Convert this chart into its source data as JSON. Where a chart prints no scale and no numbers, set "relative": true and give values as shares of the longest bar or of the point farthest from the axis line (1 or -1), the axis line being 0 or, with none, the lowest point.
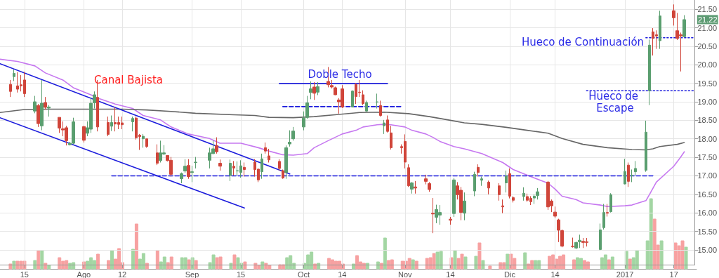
{
  "chart_data": [
    {
      "type": "candlestick",
      "x": [
        "2016-07-11",
        "2016-07-12",
        "2016-07-13",
        "2016-07-14",
        "2016-07-15",
        "2016-07-18",
        "2016-07-19",
        "2016-07-20",
        "2016-07-21",
        "2016-07-22",
        "2016-07-25",
        "2016-07-26",
        "2016-07-27",
        "2016-07-28",
        "2016-07-29",
        "2016-08-01",
        "2016-08-02",
        "2016-08-03",
        "2016-08-04",
        "2016-08-05",
        "2016-08-08",
        "2016-08-09",
        "2016-08-10",
        "2016-08-11",
        "2016-08-12",
        "2016-08-15",
        "2016-08-16",
        "2016-08-17",
        "2016-08-18",
        "2016-08-19",
        "2016-08-22",
        "2016-08-23",
        "2016-08-24",
        "2016-08-25",
        "2016-08-26",
        "2016-08-29",
        "2016-08-30",
        "2016-08-31",
        "2016-09-01",
        "2016-09-02",
        "2016-09-06",
        "2016-09-07",
        "2016-09-08",
        "2016-09-09",
        "2016-09-12",
        "2016-09-13",
        "2016-09-14",
        "2016-09-15",
        "2016-09-16",
        "2016-09-19",
        "2016-09-20",
        "2016-09-21",
        "2016-09-22",
        "2016-09-23",
        "2016-09-26",
        "2016-09-27",
        "2016-09-28",
        "2016-09-29",
        "2016-09-30",
        "2016-10-03",
        "2016-10-04",
        "2016-10-05",
        "2016-10-06",
        "2016-10-07",
        "2016-10-10",
        "2016-10-11",
        "2016-10-12",
        "2016-10-13",
        "2016-10-14",
        "2016-10-17",
        "2016-10-18",
        "2016-10-19",
        "2016-10-20",
        "2016-10-21",
        "2016-10-24",
        "2016-10-25",
        "2016-10-26",
        "2016-10-27",
        "2016-10-28",
        "2016-10-31",
        "2016-11-01",
        "2016-11-02",
        "2016-11-03",
        "2016-11-04",
        "2016-11-07",
        "2016-11-08",
        "2016-11-09",
        "2016-11-10",
        "2016-11-11",
        "2016-11-14",
        "2016-11-15",
        "2016-11-16",
        "2016-11-17",
        "2016-11-18",
        "2016-11-21",
        "2016-11-22",
        "2016-11-23",
        "2016-11-25",
        "2016-11-28",
        "2016-11-29",
        "2016-11-30",
        "2016-12-01",
        "2016-12-02",
        "2016-12-05",
        "2016-12-06",
        "2016-12-07",
        "2016-12-08",
        "2016-12-09",
        "2016-12-12",
        "2016-12-13",
        "2016-12-14",
        "2016-12-15",
        "2016-12-16",
        "2016-12-19",
        "2016-12-20",
        "2016-12-21",
        "2016-12-22",
        "2016-12-23",
        "2016-12-27",
        "2016-12-28",
        "2016-12-29",
        "2016-12-30",
        "2017-01-03",
        "2017-01-04",
        "2017-01-05",
        "2017-01-06",
        "2017-01-09",
        "2017-01-10",
        "2017-01-11",
        "2017-01-12",
        "2017-01-13",
        "2017-01-17",
        "2017-01-18",
        "2017-01-19",
        "2017-01-20"
      ],
      "ohlc": [
        [
          19.47,
          19.59,
          19.13,
          19.28
        ],
        [
          19.68,
          19.87,
          19.56,
          19.77
        ],
        [
          19.43,
          19.8,
          19.25,
          19.34
        ],
        [
          19.46,
          19.72,
          19.28,
          19.43
        ],
        [
          19.59,
          19.81,
          19.13,
          19.22
        ],
        [
          18.75,
          19.16,
          18.69,
          19.0
        ],
        [
          18.9,
          18.94,
          18.32,
          18.41
        ],
        [
          18.35,
          19.59,
          18.23,
          18.96
        ],
        [
          18.98,
          19.13,
          18.79,
          18.85
        ],
        [
          18.83,
          18.91,
          18.6,
          18.86
        ],
        [
          18.58,
          18.58,
          18.16,
          18.29
        ],
        [
          18.27,
          18.47,
          18.07,
          18.24
        ],
        [
          18.3,
          18.35,
          17.82,
          17.95
        ],
        [
          17.84,
          17.92,
          17.82,
          17.88
        ],
        [
          17.88,
          18.57,
          17.85,
          18.46
        ],
        [
          18.33,
          18.35,
          17.9,
          17.96
        ],
        [
          18.15,
          18.47,
          18.07,
          18.3
        ],
        [
          18.26,
          19.1,
          18.16,
          18.96
        ],
        [
          18.97,
          19.28,
          18.82,
          19.19
        ],
        [
          19.12,
          19.59,
          18.2,
          18.32
        ],
        [
          18.44,
          18.6,
          18.07,
          18.12
        ],
        [
          18.34,
          18.63,
          18.21,
          18.44
        ],
        [
          18.44,
          18.85,
          18.2,
          18.4
        ],
        [
          18.44,
          18.6,
          18.26,
          18.39
        ],
        [
          18.43,
          18.6,
          18.26,
          18.38
        ],
        [
          18.46,
          18.6,
          18.2,
          18.55
        ],
        [
          18.56,
          18.6,
          17.98,
          18.03
        ],
        [
          18.1,
          18.13,
          17.7,
          18.06
        ],
        [
          18.0,
          18.13,
          17.76,
          18.07
        ],
        [
          18.0,
          18.0,
          17.76,
          17.79
        ],
        [
          17.62,
          17.85,
          17.29,
          17.34
        ],
        [
          17.41,
          17.95,
          17.36,
          17.62
        ],
        [
          17.59,
          17.83,
          17.56,
          17.62
        ],
        [
          17.55,
          17.56,
          17.39,
          17.41
        ],
        [
          17.42,
          17.51,
          16.98,
          17.04
        ],
        [
          16.92,
          17.09,
          16.8,
          17.06
        ],
        [
          17.13,
          17.45,
          17.08,
          17.26
        ],
        [
          17.28,
          17.45,
          16.92,
          16.98
        ],
        [
          17.09,
          17.27,
          16.83,
          17.11
        ],
        [
          17.36,
          17.51,
          17.2,
          17.37
        ],
        [
          17.42,
          17.76,
          17.2,
          17.62
        ],
        [
          17.6,
          17.95,
          17.59,
          17.73
        ],
        [
          17.82,
          18.04,
          17.6,
          17.65
        ],
        [
          17.34,
          17.44,
          17.14,
          17.26
        ],
        [
          17.01,
          17.44,
          16.86,
          17.34
        ],
        [
          17.26,
          17.4,
          17.01,
          17.21
        ],
        [
          17.13,
          17.39,
          17.01,
          17.14
        ],
        [
          17.09,
          17.42,
          16.95,
          17.27
        ],
        [
          17.23,
          17.36,
          16.98,
          17.17
        ],
        [
          17.37,
          17.45,
          16.98,
          17.17
        ],
        [
          17.18,
          17.2,
          16.83,
          16.89
        ],
        [
          17.11,
          17.6,
          16.92,
          17.46
        ],
        [
          17.76,
          17.9,
          17.6,
          17.67
        ],
        [
          17.54,
          17.73,
          17.36,
          17.43
        ],
        [
          17.39,
          17.45,
          17.14,
          17.2
        ],
        [
          17.14,
          17.17,
          16.92,
          16.94
        ],
        [
          17.09,
          17.82,
          16.92,
          17.76
        ],
        [
          17.86,
          18.23,
          17.79,
          17.91
        ],
        [
          18.0,
          18.32,
          17.95,
          18.21
        ],
        [
          18.32,
          18.74,
          18.23,
          18.56
        ],
        [
          18.58,
          19.16,
          18.54,
          18.97
        ],
        [
          19.25,
          19.55,
          19.07,
          19.35
        ],
        [
          19.4,
          19.53,
          19.05,
          19.23
        ],
        [
          19.26,
          19.53,
          19.18,
          19.41
        ],
        [
          19.55,
          19.94,
          19.39,
          19.46
        ],
        [
          19.44,
          19.59,
          19.36,
          19.4
        ],
        [
          19.38,
          19.41,
          19.18,
          19.19
        ],
        [
          19.05,
          19.1,
          18.68,
          19.0
        ],
        [
          19.35,
          19.45,
          18.83,
          18.86
        ],
        [
          18.86,
          19.31,
          18.85,
          19.29
        ],
        [
          19.47,
          19.5,
          18.94,
          19.14
        ],
        [
          19.26,
          19.59,
          19.13,
          19.25
        ],
        [
          19.19,
          19.31,
          18.91,
          18.95
        ],
        [
          18.75,
          19.03,
          18.74,
          18.98
        ],
        [
          18.99,
          19.22,
          18.82,
          19.0
        ],
        [
          18.9,
          19.03,
          18.6,
          18.63
        ],
        [
          18.35,
          18.51,
          18.13,
          18.43
        ],
        [
          18.51,
          18.63,
          18.17,
          18.2
        ],
        [
          18.16,
          18.35,
          17.71,
          17.76
        ],
        [
          17.79,
          17.85,
          17.6,
          17.76
        ],
        [
          17.93,
          18.12,
          17.2,
          17.37
        ],
        [
          17.22,
          17.31,
          16.7,
          16.73
        ],
        [
          16.64,
          16.83,
          16.52,
          16.81
        ],
        [
          16.7,
          16.86,
          16.52,
          16.67
        ],
        [
          16.92,
          17.03,
          16.77,
          16.85
        ],
        [
          16.79,
          16.83,
          16.57,
          16.63
        ],
        [
          15.99,
          16.4,
          15.45,
          15.97
        ],
        [
          15.88,
          16.22,
          15.72,
          16.09
        ],
        [
          15.94,
          16.21,
          15.68,
          16.01
        ],
        [
          15.83,
          15.89,
          15.68,
          15.8
        ],
        [
          15.98,
          16.94,
          15.89,
          16.89
        ],
        [
          16.73,
          16.83,
          16.36,
          16.49
        ],
        [
          16.61,
          16.7,
          15.8,
          16.01
        ],
        [
          15.99,
          16.55,
          15.8,
          16.32
        ],
        [
          16.59,
          17.11,
          16.45,
          17.04
        ],
        [
          17.23,
          17.31,
          16.98,
          17.09
        ],
        [
          16.88,
          16.98,
          16.73,
          16.92
        ],
        [
          16.83,
          16.87,
          16.5,
          16.67
        ],
        [
          16.73,
          16.8,
          16.33,
          16.49
        ],
        [
          16.19,
          16.36,
          15.99,
          16.16
        ],
        [
          16.81,
          17.14,
          16.55,
          17.0
        ],
        [
          17.06,
          17.2,
          16.39,
          16.45
        ],
        [
          16.41,
          16.45,
          16.28,
          16.34
        ],
        [
          16.44,
          16.69,
          16.33,
          16.53
        ],
        [
          16.44,
          16.52,
          16.3,
          16.34
        ],
        [
          16.39,
          16.45,
          16.21,
          16.3
        ],
        [
          16.4,
          16.5,
          16.24,
          16.45
        ],
        [
          16.47,
          16.67,
          16.36,
          16.57
        ],
        [
          16.83,
          16.86,
          16.08,
          16.16
        ],
        [
          16.32,
          16.36,
          16.02,
          16.19
        ],
        [
          16.02,
          16.17,
          15.86,
          15.91
        ],
        [
          15.81,
          15.84,
          15.21,
          15.53
        ],
        [
          15.52,
          15.55,
          15.07,
          15.1
        ],
        [
          15.1,
          15.33,
          15.06,
          15.09
        ],
        [
          15.05,
          15.22,
          15.02,
          15.2
        ],
        [
          15.22,
          15.41,
          15.05,
          15.26
        ],
        [
          15.23,
          15.32,
          15.05,
          15.2
        ],
        [
          15.22,
          15.32,
          15.09,
          15.2
        ],
        [
          15.01,
          15.71,
          14.99,
          15.54
        ],
        [
          15.6,
          16.24,
          15.55,
          16.01
        ],
        [
          16.01,
          16.24,
          15.9,
          15.99
        ],
        [
          16.03,
          16.53,
          16.01,
          16.49
        ],
        [
          16.78,
          17.46,
          16.77,
          17.12
        ],
        [
          17.29,
          17.36,
          16.7,
          16.85
        ],
        [
          17.0,
          17.17,
          16.83,
          17.02
        ],
        [
          17.11,
          17.4,
          17.01,
          17.2
        ],
        [
          17.15,
          18.49,
          17.11,
          18.18
        ],
        [
          19.3,
          20.68,
          18.91,
          20.53
        ],
        [
          20.89,
          20.99,
          20.25,
          20.71
        ],
        [
          20.81,
          20.93,
          20.43,
          20.78
        ],
        [
          20.65,
          21.46,
          20.43,
          21.32
        ],
        [
          21.46,
          21.63,
          21.06,
          21.27
        ],
        [
          20.92,
          21.4,
          20.67,
          20.71
        ],
        [
          20.81,
          20.87,
          19.82,
          20.78
        ],
        [
          20.76,
          21.34,
          20.74,
          21.22
        ]
      ],
      "colors": [
        "#d0453a",
        "#5a9e6f",
        "#d0453a",
        "#d0453a",
        "#d0453a",
        "#5a9e6f",
        "#d0453a",
        "#5a9e6f",
        "#d0453a",
        "#5a9e6f",
        "#d0453a",
        "#d0453a",
        "#d0453a",
        "#5a9e6f",
        "#5a9e6f",
        "#d0453a",
        "#5a9e6f",
        "#5a9e6f",
        "#5a9e6f",
        "#d0453a",
        "#d0453a",
        "#5a9e6f",
        "#d0453a",
        "#d0453a",
        "#d0453a",
        "#5a9e6f",
        "#d0453a",
        "#d0453a",
        "#5a9e6f",
        "#d0453a",
        "#d0453a",
        "#5a9e6f",
        "#5a9e6f",
        "#d0453a",
        "#d0453a",
        "#5a9e6f",
        "#5a9e6f",
        "#d0453a",
        "#5a9e6f",
        "#5a9e6f",
        "#5a9e6f",
        "#5a9e6f",
        "#d0453a",
        "#d0453a",
        "#5a9e6f",
        "#d0453a",
        "#5a9e6f",
        "#5a9e6f",
        "#d0453a",
        "#d0453a",
        "#d0453a",
        "#5a9e6f",
        "#d0453a",
        "#d0453a",
        "#d0453a",
        "#d0453a",
        "#5a9e6f",
        "#5a9e6f",
        "#5a9e6f",
        "#5a9e6f",
        "#5a9e6f",
        "#5a9e6f",
        "#d0453a",
        "#5a9e6f",
        "#d0453a",
        "#d0453a",
        "#d0453a",
        "#d0453a",
        "#d0453a",
        "#5a9e6f",
        "#d0453a",
        "#d0453a",
        "#d0453a",
        "#5a9e6f",
        "#5a9e6f",
        "#d0453a",
        "#5a9e6f",
        "#d0453a",
        "#d0453a",
        "#d0453a",
        "#d0453a",
        "#d0453a",
        "#5a9e6f",
        "#d0453a",
        "#d0453a",
        "#d0453a",
        "#d0453a",
        "#5a9e6f",
        "#5a9e6f",
        "#d0453a",
        "#5a9e6f",
        "#d0453a",
        "#d0453a",
        "#5a9e6f",
        "#5a9e6f",
        "#d0453a",
        "#5a9e6f",
        "#d0453a",
        "#d0453a",
        "#d0453a",
        "#5a9e6f",
        "#d0453a",
        "#d0453a",
        "#5a9e6f",
        "#d0453a",
        "#d0453a",
        "#5a9e6f",
        "#5a9e6f",
        "#d0453a",
        "#d0453a",
        "#d0453a",
        "#d0453a",
        "#d0453a",
        "#d0453a",
        "#5a9e6f",
        "#5a9e6f",
        "#d0453a",
        "#d0453a",
        "#5a9e6f",
        "#5a9e6f",
        "#d0453a",
        "#5a9e6f",
        "#5a9e6f",
        "#d0453a",
        "#5a9e6f",
        "#5a9e6f",
        "#5a9e6f",
        "#5a9e6f",
        "#d0453a",
        "#d0453a",
        "#5a9e6f",
        "#d0453a",
        "#d0453a",
        "#d0453a",
        "#5a9e6f"
      ],
      "series": [
        {
          "type": "line",
          "color": "#c678f0",
          "line_style": "solid",
          "x": [
            "2016-07-08",
            "2016-07-13",
            "2016-07-18",
            "2016-07-21",
            "2016-07-26",
            "2016-07-29",
            "2016-08-03",
            "2016-08-05",
            "2016-08-10",
            "2016-08-15",
            "2016-08-18",
            "2016-08-23",
            "2016-08-26",
            "2016-08-31",
            "2016-09-06",
            "2016-09-09",
            "2016-09-15",
            "2016-09-20",
            "2016-09-23",
            "2016-09-27",
            "2016-09-30",
            "2016-10-04",
            "2016-10-06",
            "2016-10-10",
            "2016-10-12",
            "2016-10-14",
            "2016-10-18",
            "2016-10-20",
            "2016-10-24",
            "2016-10-26",
            "2016-10-28",
            "2016-11-01",
            "2016-11-03",
            "2016-11-07",
            "2016-11-09",
            "2016-11-11",
            "2016-11-15",
            "2016-11-18",
            "2016-11-23",
            "2016-11-29",
            "2016-12-02",
            "2016-12-07",
            "2016-12-12",
            "2016-12-14",
            "2016-12-16",
            "2016-12-20",
            "2016-12-22",
            "2016-12-27",
            "2016-12-29",
            "2017-01-03",
            "2017-01-05",
            "2017-01-09",
            "2017-01-10",
            "2017-01-12",
            "2017-01-17",
            "2017-01-19",
            "2017-01-20"
          ],
          "values": [
            20.15,
            20.09,
            19.97,
            19.78,
            19.59,
            19.38,
            19.19,
            19.1,
            18.94,
            18.82,
            18.63,
            18.51,
            18.32,
            18.13,
            18.01,
            17.88,
            17.88,
            17.76,
            17.67,
            17.57,
            17.56,
            17.6,
            17.76,
            17.95,
            18.04,
            18.13,
            18.23,
            18.32,
            18.38,
            18.39,
            18.38,
            18.32,
            18.23,
            18.13,
            18.04,
            17.93,
            17.79,
            17.73,
            17.6,
            17.36,
            17.17,
            16.98,
            16.8,
            16.64,
            16.45,
            16.36,
            16.27,
            16.21,
            16.17,
            16.19,
            16.21,
            16.33,
            16.49,
            16.83,
            17.26,
            17.51,
            17.65
          ]
        },
        {
          "type": "line",
          "color": "#666666",
          "line_style": "solid",
          "x": [
            "2016-07-08",
            "2016-07-15",
            "2016-07-22",
            "2016-07-29",
            "2016-08-05",
            "2016-08-12",
            "2016-08-19",
            "2016-08-26",
            "2016-09-02",
            "2016-09-13",
            "2016-09-19",
            "2016-09-23",
            "2016-09-30",
            "2016-10-06",
            "2016-10-13",
            "2016-10-19",
            "2016-10-26",
            "2016-11-02",
            "2016-11-08",
            "2016-11-14",
            "2016-11-18",
            "2016-11-23",
            "2016-11-30",
            "2016-12-06",
            "2016-12-12",
            "2016-12-16",
            "2016-12-22",
            "2016-12-29",
            "2017-01-05",
            "2017-01-09",
            "2017-01-11",
            "2017-01-13",
            "2017-01-18",
            "2017-01-20"
          ],
          "values": [
            18.71,
            18.79,
            18.8,
            18.8,
            18.8,
            18.8,
            18.78,
            18.74,
            18.69,
            18.65,
            18.63,
            18.58,
            18.57,
            18.6,
            18.66,
            18.71,
            18.72,
            18.68,
            18.6,
            18.5,
            18.43,
            18.39,
            18.31,
            18.23,
            18.15,
            18.01,
            17.85,
            17.76,
            17.71,
            17.7,
            17.73,
            17.79,
            17.85,
            17.9
          ]
        },
        {
          "type": "line",
          "color": "#1c1cdc",
          "line_style": "solid",
          "x": [
            "2016-07-08",
            "2016-09-29"
          ],
          "values": [
            20.03,
            17.05
          ]
        },
        {
          "type": "line",
          "color": "#1c1cdc",
          "line_style": "solid",
          "x": [
            "2016-07-08",
            "2016-09-16"
          ],
          "values": [
            18.57,
            16.13
          ]
        },
        {
          "type": "line",
          "color": "#1c1cdc",
          "line_style": "solid",
          "x": [
            "2016-09-26",
            "2016-10-27"
          ],
          "values": [
            19.49,
            19.49
          ]
        },
        {
          "type": "line",
          "color": "#1c1cdc",
          "line_style": "dashed",
          "x": [
            "2016-09-27",
            "2016-10-31"
          ],
          "values": [
            18.87,
            18.87
          ]
        },
        {
          "type": "line",
          "color": "#1c1cdc",
          "line_style": "dashed",
          "x": [
            "2016-08-09",
            "2017-01-11"
          ],
          "values": [
            17.0,
            17.0
          ]
        },
        {
          "type": "line",
          "color": "#1c1cdc",
          "line_style": "dotted",
          "x": [
            "2016-12-23",
            "2017-01-23"
          ],
          "values": [
            19.3,
            19.3
          ]
        },
        {
          "type": "line",
          "color": "#1c1cdc",
          "line_style": "dotted",
          "x": [
            "2017-01-09",
            "2017-01-23"
          ],
          "values": [
            20.73,
            20.73
          ]
        }
      ],
      "marker": "none",
      "xlim": [
        "2016-07-08",
        "2017-01-23"
      ],
      "xticks": [
        {
          "value": "2016-07-15",
          "label": "15"
        },
        {
          "value": "2016-08-01",
          "label": "Ago"
        },
        {
          "value": "2016-08-12",
          "label": "12"
        },
        {
          "value": "2016-09-01",
          "label": "Sep"
        },
        {
          "value": "2016-09-15",
          "label": "15"
        },
        {
          "value": "2016-10-03",
          "label": "Oct"
        },
        {
          "value": "2016-10-14",
          "label": "14"
        },
        {
          "value": "2016-11-01",
          "label": "Nov"
        },
        {
          "value": "2016-11-14",
          "label": "14"
        },
        {
          "value": "2016-12-01",
          "label": "Dic"
        },
        {
          "value": "2016-12-14",
          "label": "14"
        },
        {
          "value": "2017-01-03",
          "label": "2017"
        },
        {
          "value": "2017-01-17",
          "label": "17"
        }
      ],
      "ylim": [
        14.6,
        21.75
      ],
      "yticks": [
        {
          "value": 15,
          "label": "15.00"
        },
        {
          "value": 15.5,
          "label": "15.50"
        },
        {
          "value": 16,
          "label": "16.00"
        },
        {
          "value": 16.5,
          "label": "16.50"
        },
        {
          "value": 17,
          "label": "17.00"
        },
        {
          "value": 17.5,
          "label": "17.50"
        },
        {
          "value": 18,
          "label": "18.00"
        },
        {
          "value": 18.5,
          "label": "18.50"
        },
        {
          "value": 19,
          "label": "19.00"
        },
        {
          "value": 19.5,
          "label": "19.50"
        },
        {
          "value": 20,
          "label": "20.00"
        },
        {
          "value": 20.5,
          "label": "20.50"
        },
        {
          "value": 21,
          "label": "21.00"
        },
        {
          "value": 21.5,
          "label": "21.50"
        }
      ],
      "grid": true,
      "annotations": [
        "Canal Bajista",
        "Doble Techo",
        "Hueco de Continuación",
        "Hueco de Escape",
        "21.22"
      ]
    },
    {
      "type": "bar",
      "relative": true,
      "tick_labels": false,
      "xlim": [
        "2016-07-08",
        "2017-01-23"
      ],
      "x": [
        "2016-07-11",
        "2016-07-12",
        "2016-07-13",
        "2016-07-14",
        "2016-07-15",
        "2016-07-18",
        "2016-07-19",
        "2016-07-20",
        "2016-07-21",
        "2016-07-22",
        "2016-07-25",
        "2016-07-26",
        "2016-07-27",
        "2016-07-28",
        "2016-07-29",
        "2016-08-01",
        "2016-08-02",
        "2016-08-03",
        "2016-08-04",
        "2016-08-05",
        "2016-08-08",
        "2016-08-09",
        "2016-08-10",
        "2016-08-11",
        "2016-08-12",
        "2016-08-15",
        "2016-08-16",
        "2016-08-17",
        "2016-08-18",
        "2016-08-19",
        "2016-08-22",
        "2016-08-23",
        "2016-08-24",
        "2016-08-25",
        "2016-08-26",
        "2016-08-29",
        "2016-08-30",
        "2016-08-31",
        "2016-09-01",
        "2016-09-02",
        "2016-09-06",
        "2016-09-07",
        "2016-09-08",
        "2016-09-09",
        "2016-09-12",
        "2016-09-13",
        "2016-09-14",
        "2016-09-15",
        "2016-09-16",
        "2016-09-19",
        "2016-09-20",
        "2016-09-21",
        "2016-09-22",
        "2016-09-23",
        "2016-09-26",
        "2016-09-27",
        "2016-09-28",
        "2016-09-29",
        "2016-09-30",
        "2016-10-03",
        "2016-10-04",
        "2016-10-05",
        "2016-10-06",
        "2016-10-07",
        "2016-10-10",
        "2016-10-11",
        "2016-10-12",
        "2016-10-13",
        "2016-10-14",
        "2016-10-17",
        "2016-10-18",
        "2016-10-19",
        "2016-10-20",
        "2016-10-21",
        "2016-10-24",
        "2016-10-25",
        "2016-10-26",
        "2016-10-27",
        "2016-10-28",
        "2016-10-31",
        "2016-11-01",
        "2016-11-02",
        "2016-11-03",
        "2016-11-04",
        "2016-11-07",
        "2016-11-08",
        "2016-11-09",
        "2016-11-10",
        "2016-11-11",
        "2016-11-14",
        "2016-11-15",
        "2016-11-16",
        "2016-11-17",
        "2016-11-18",
        "2016-11-21",
        "2016-11-22",
        "2016-11-23",
        "2016-11-25",
        "2016-11-28",
        "2016-11-29",
        "2016-11-30",
        "2016-12-01",
        "2016-12-02",
        "2016-12-05",
        "2016-12-06",
        "2016-12-07",
        "2016-12-08",
        "2016-12-09",
        "2016-12-12",
        "2016-12-13",
        "2016-12-14",
        "2016-12-15",
        "2016-12-16",
        "2016-12-19",
        "2016-12-20",
        "2016-12-21",
        "2016-12-22",
        "2016-12-23",
        "2016-12-27",
        "2016-12-28",
        "2016-12-29",
        "2016-12-30",
        "2017-01-03",
        "2017-01-04",
        "2017-01-05",
        "2017-01-06",
        "2017-01-09",
        "2017-01-10",
        "2017-01-11",
        "2017-01-12",
        "2017-01-13",
        "2017-01-17",
        "2017-01-18",
        "2017-01-19",
        "2017-01-20"
      ],
      "values": [
        0.07,
        0.11,
        0.11,
        0.11,
        0.11,
        0.12,
        0.26,
        0.26,
        0.08,
        0.05,
        0.16,
        0.11,
        0.12,
        0.08,
        0.09,
        0.1,
        0.11,
        0.16,
        0.12,
        0.21,
        0.12,
        0.26,
        0.14,
        0.29,
        0.09,
        0.28,
        0.64,
        0.14,
        0.22,
        0.08,
        0.26,
        0.1,
        0.17,
        0.09,
        0.17,
        0.16,
        0.16,
        0.13,
        0.16,
        0.12,
        0.09,
        0.2,
        0.16,
        0.17,
        0.08,
        0.2,
        0.16,
        0.08,
        0.1,
        0.08,
        0.05,
        0.1,
        0.08,
        0.05,
        0.06,
        0.06,
        0.16,
        0.19,
        0.08,
        0.08,
        0.2,
        0.24,
        0.07,
        0.08,
        0.15,
        0.13,
        0.11,
        0.11,
        0.07,
        0.07,
        0.19,
        0.1,
        0.08,
        0.08,
        0.1,
        0.08,
        0.44,
        0.12,
        0.13,
        0.11,
        0.11,
        0.15,
        0.13,
        0.11,
        0.15,
        0.16,
        0.22,
        0.24,
        0.25,
        0.16,
        0.26,
        0.15,
        0.21,
        0.17,
        0.18,
        0.37,
        0.12,
        0.04,
        0.09,
        0.09,
        0.21,
        0.21,
        0.15,
        0.23,
        0.07,
        0.12,
        0.12,
        0.12,
        0.18,
        0.2,
        0.14,
        0.18,
        0.2,
        0.13,
        0.16,
        0.15,
        0.12,
        0.1,
        0.16,
        0.2,
        0.13,
        0.17,
        0.25,
        0.14,
        0.16,
        0.26,
        0.4,
        1,
        0.71,
        0.34,
        0.4,
        0.37,
        0.33,
        0.4,
        0.31
      ],
      "colors": [
        "#f7a1a1",
        "#a3d6a3",
        "#f7a1a1",
        "#f7a1a1",
        "#f7a1a1",
        "#a3d6a3",
        "#f7a1a1",
        "#a3d6a3",
        "#f7a1a1",
        "#a3d6a3",
        "#f7a1a1",
        "#f7a1a1",
        "#f7a1a1",
        "#a3d6a3",
        "#a3d6a3",
        "#f7a1a1",
        "#a3d6a3",
        "#a3d6a3",
        "#a3d6a3",
        "#f7a1a1",
        "#f7a1a1",
        "#a3d6a3",
        "#f7a1a1",
        "#f7a1a1",
        "#f7a1a1",
        "#a3d6a3",
        "#f7a1a1",
        "#a3d6a3",
        "#a3d6a3",
        "#f7a1a1",
        "#f7a1a1",
        "#a3d6a3",
        "#a3d6a3",
        "#f7a1a1",
        "#f7a1a1",
        "#a3d6a3",
        "#a3d6a3",
        "#f7a1a1",
        "#a3d6a3",
        "#f7a1a1",
        "#a3d6a3",
        "#a3d6a3",
        "#f7a1a1",
        "#f7a1a1",
        "#a3d6a3",
        "#f7a1a1",
        "#a3d6a3",
        "#a3d6a3",
        "#f7a1a1",
        "#f7a1a1",
        "#f7a1a1",
        "#a3d6a3",
        "#f7a1a1",
        "#f7a1a1",
        "#f7a1a1",
        "#f7a1a1",
        "#a3d6a3",
        "#a3d6a3",
        "#a3d6a3",
        "#a3d6a3",
        "#a3d6a3",
        "#a3d6a3",
        "#f7a1a1",
        "#a3d6a3",
        "#f7a1a1",
        "#f7a1a1",
        "#f7a1a1",
        "#f7a1a1",
        "#f7a1a1",
        "#a3d6a3",
        "#f7a1a1",
        "#f7a1a1",
        "#f7a1a1",
        "#a3d6a3",
        "#a3d6a3",
        "#f7a1a1",
        "#a3d6a3",
        "#f7a1a1",
        "#f7a1a1",
        "#f7a1a1",
        "#f7a1a1",
        "#f7a1a1",
        "#a3d6a3",
        "#f7a1a1",
        "#f7a1a1",
        "#f7a1a1",
        "#f7a1a1",
        "#a3d6a3",
        "#a3d6a3",
        "#f7a1a1",
        "#a3d6a3",
        "#f7a1a1",
        "#f7a1a1",
        "#a3d6a3",
        "#a3d6a3",
        "#f7a1a1",
        "#a3d6a3",
        "#f7a1a1",
        "#f7a1a1",
        "#f7a1a1",
        "#a3d6a3",
        "#f7a1a1",
        "#f7a1a1",
        "#a3d6a3",
        "#f7a1a1",
        "#f7a1a1",
        "#a3d6a3",
        "#a3d6a3",
        "#f7a1a1",
        "#f7a1a1",
        "#f7a1a1",
        "#f7a1a1",
        "#f7a1a1",
        "#f7a1a1",
        "#a3d6a3",
        "#a3d6a3",
        "#f7a1a1",
        "#f7a1a1",
        "#a3d6a3",
        "#a3d6a3",
        "#f7a1a1",
        "#a3d6a3",
        "#a3d6a3",
        "#f7a1a1",
        "#a3d6a3",
        "#a3d6a3",
        "#a3d6a3",
        "#a3d6a3",
        "#f7a1a1",
        "#f7a1a1",
        "#a3d6a3",
        "#f7a1a1",
        "#f7a1a1",
        "#f7a1a1",
        "#a3d6a3"
      ]
    }
  ]
}
